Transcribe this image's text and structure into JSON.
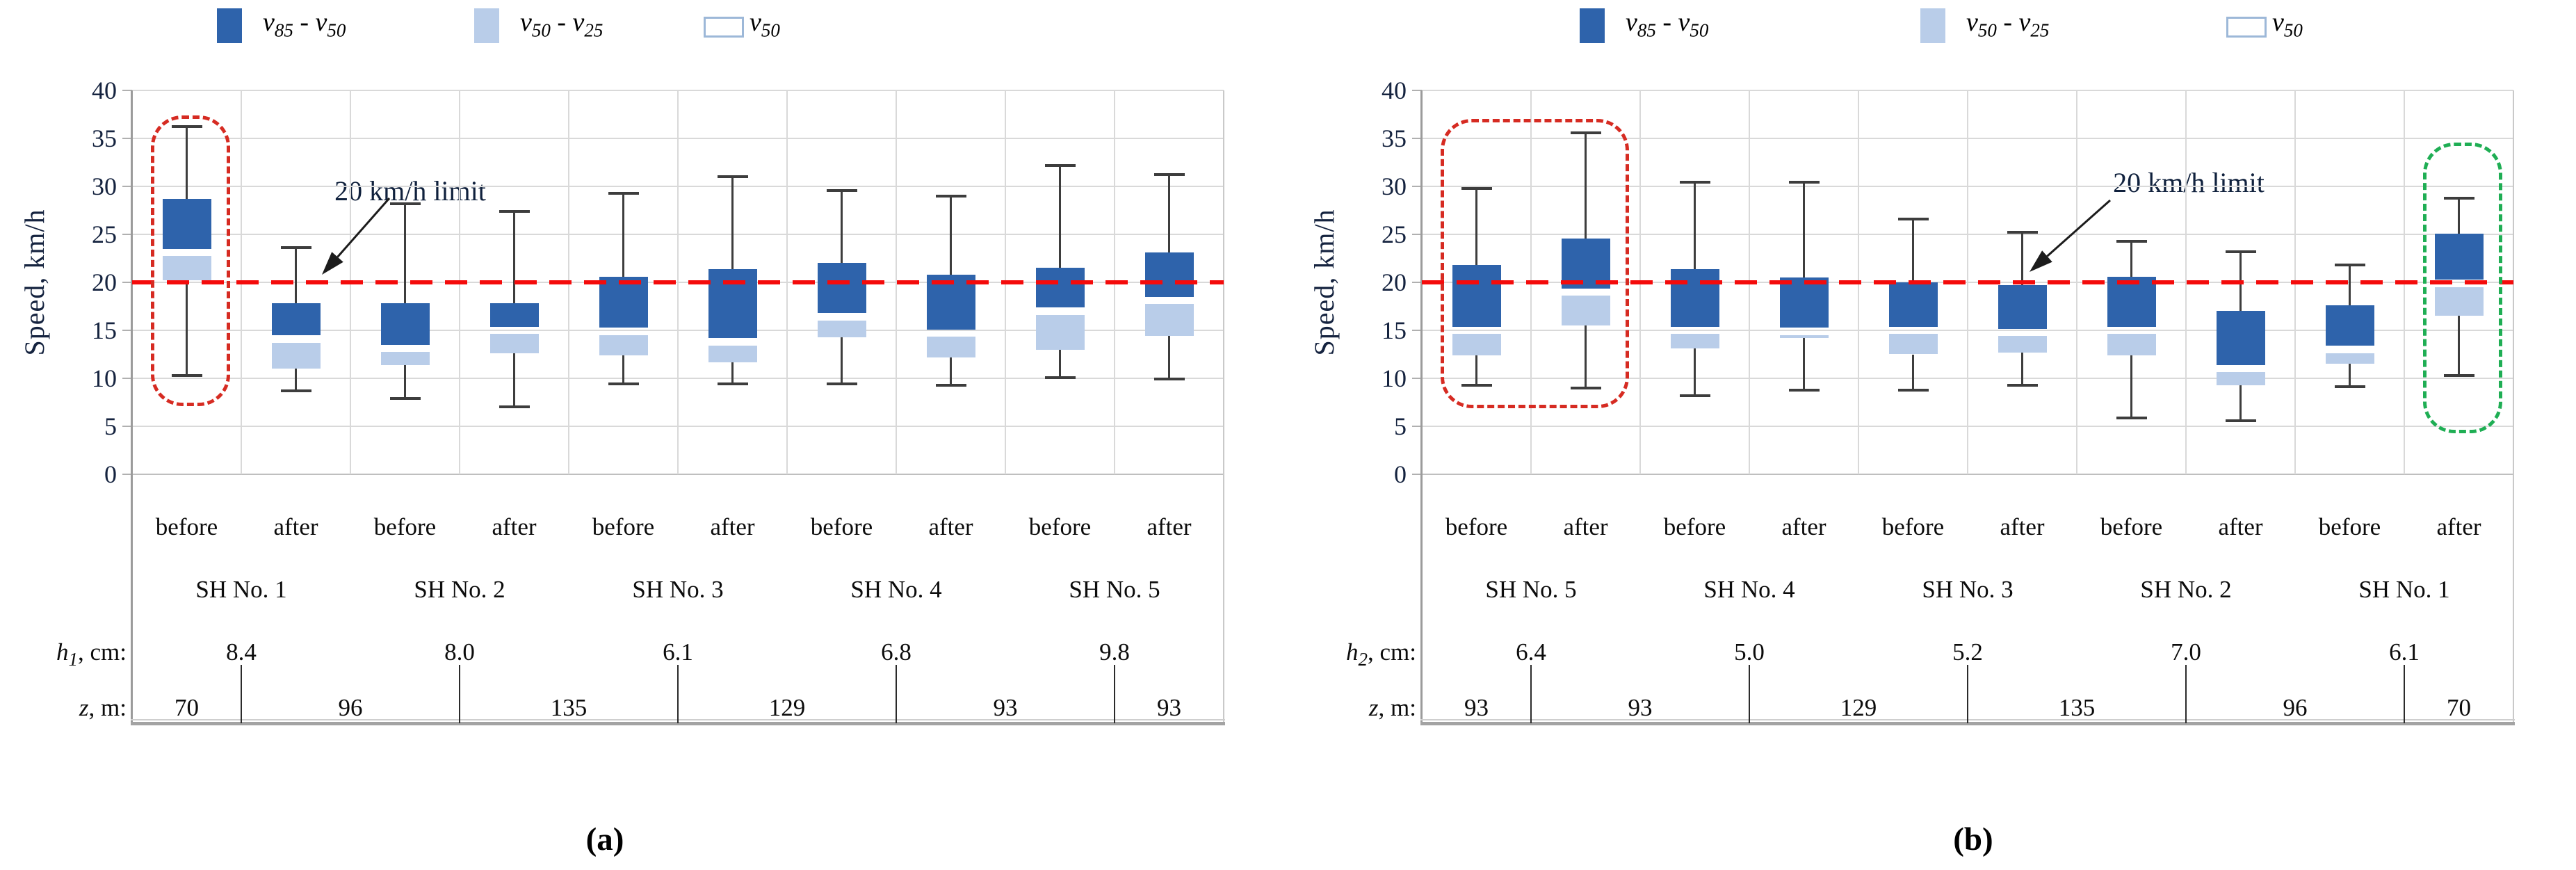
{
  "figure": {
    "captions": [
      "(a)",
      "(b)"
    ],
    "colors": {
      "box_dark": "#2e63ab",
      "box_light": "#b9cde9",
      "limit_red": "#f40b0b",
      "highlight_red": "#d62b22",
      "highlight_green": "#1fae54",
      "grid": "#d9d9d9",
      "axis": "#9b9b9b",
      "whisker": "#3d3d3d",
      "outline_swatch_border": "#9db8d8"
    }
  },
  "legend": {
    "items": [
      {
        "name": "v85-v50",
        "swatch": "dark",
        "v1": "85",
        "sep": " - ",
        "v2": "50",
        "display": "v85 - v50"
      },
      {
        "name": "v50-v25",
        "swatch": "light",
        "v1": "50",
        "sep": " - ",
        "v2": "25",
        "display": "v50 - v25"
      },
      {
        "name": "v50",
        "swatch": "outline",
        "v1": "50",
        "sep": "",
        "v2": "",
        "display": "v50"
      }
    ]
  },
  "chart_data": [
    {
      "id": "a",
      "type": "box",
      "caption": "(a)",
      "y_axis": {
        "title": "Speed, km/h",
        "min": 0,
        "max": 40,
        "step": 5,
        "tick_labels": [
          "40",
          "35",
          "30",
          "25",
          "20",
          "15",
          "10",
          "5",
          "0"
        ]
      },
      "limit_line": {
        "value": 20,
        "label": "20 km/h limit"
      },
      "groups": [
        {
          "label": "SH No. 1",
          "h": "8.4"
        },
        {
          "label": "SH No. 2",
          "h": "8.0"
        },
        {
          "label": "SH No. 3",
          "h": "6.1"
        },
        {
          "label": "SH No. 4",
          "h": "6.8"
        },
        {
          "label": "SH No. 5",
          "h": "9.8"
        }
      ],
      "h_row": {
        "var": "h",
        "sub": "1",
        "unit": ", cm:"
      },
      "z_row": {
        "var": "z",
        "sub": "",
        "unit": ", m:"
      },
      "z_values": [
        "70",
        "96",
        "135",
        "129",
        "93",
        "93"
      ],
      "boxes": [
        {
          "phase": "before",
          "group": "SH No. 1",
          "lo": 10.3,
          "p25": 20.2,
          "p50": 23.1,
          "p85": 28.7,
          "hi": 36.2
        },
        {
          "phase": "after",
          "group": "SH No. 1",
          "lo": 8.7,
          "p25": 11.0,
          "p50": 14.1,
          "p85": 17.8,
          "hi": 23.6
        },
        {
          "phase": "before",
          "group": "SH No. 2",
          "lo": 7.9,
          "p25": 11.4,
          "p50": 13.1,
          "p85": 17.8,
          "hi": 28.2
        },
        {
          "phase": "after",
          "group": "SH No. 2",
          "lo": 7.0,
          "p25": 12.6,
          "p50": 15.0,
          "p85": 17.8,
          "hi": 27.4
        },
        {
          "phase": "before",
          "group": "SH No. 3",
          "lo": 9.4,
          "p25": 12.4,
          "p50": 14.9,
          "p85": 20.6,
          "hi": 29.3
        },
        {
          "phase": "after",
          "group": "SH No. 3",
          "lo": 9.4,
          "p25": 11.7,
          "p50": 13.8,
          "p85": 21.4,
          "hi": 31.0
        },
        {
          "phase": "before",
          "group": "SH No. 4",
          "lo": 9.4,
          "p25": 14.3,
          "p50": 16.4,
          "p85": 22.0,
          "hi": 29.6
        },
        {
          "phase": "after",
          "group": "SH No. 4",
          "lo": 9.3,
          "p25": 12.2,
          "p50": 14.7,
          "p85": 20.8,
          "hi": 29.0
        },
        {
          "phase": "before",
          "group": "SH No. 5",
          "lo": 10.1,
          "p25": 13.0,
          "p50": 17.0,
          "p85": 21.5,
          "hi": 32.2
        },
        {
          "phase": "after",
          "group": "SH No. 5",
          "lo": 9.9,
          "p25": 14.4,
          "p50": 18.1,
          "p85": 23.1,
          "hi": 31.2
        }
      ],
      "highlights": [
        {
          "style": "red-dashed",
          "first_box": 0,
          "last_box": 0,
          "top_kmh": 37.4,
          "bottom_kmh": 7.8
        }
      ]
    },
    {
      "id": "b",
      "type": "box",
      "caption": "(b)",
      "y_axis": {
        "title": "Speed, km/h",
        "min": 0,
        "max": 40,
        "step": 5,
        "tick_labels": [
          "40",
          "35",
          "30",
          "25",
          "20",
          "15",
          "10",
          "5",
          "0"
        ]
      },
      "limit_line": {
        "value": 20,
        "label": "20 km/h limit"
      },
      "groups": [
        {
          "label": "SH No. 5",
          "h": "6.4"
        },
        {
          "label": "SH No. 4",
          "h": "5.0"
        },
        {
          "label": "SH No. 3",
          "h": "5.2"
        },
        {
          "label": "SH No. 2",
          "h": "7.0"
        },
        {
          "label": "SH No. 1",
          "h": "6.1"
        }
      ],
      "h_row": {
        "var": "h",
        "sub": "2",
        "unit": ", cm:"
      },
      "z_row": {
        "var": "z",
        "sub": "",
        "unit": ", m:"
      },
      "z_values": [
        "93",
        "93",
        "129",
        "135",
        "96",
        "70"
      ],
      "boxes": [
        {
          "phase": "before",
          "group": "SH No. 5",
          "lo": 9.3,
          "p25": 12.4,
          "p50": 15.0,
          "p85": 21.8,
          "hi": 29.8
        },
        {
          "phase": "after",
          "group": "SH No. 5",
          "lo": 9.0,
          "p25": 15.5,
          "p50": 19.0,
          "p85": 24.6,
          "hi": 35.6
        },
        {
          "phase": "before",
          "group": "SH No. 4",
          "lo": 8.2,
          "p25": 13.1,
          "p50": 15.0,
          "p85": 21.4,
          "hi": 30.4
        },
        {
          "phase": "after",
          "group": "SH No. 4",
          "lo": 8.8,
          "p25": 14.2,
          "p50": 14.9,
          "p85": 20.5,
          "hi": 30.4
        },
        {
          "phase": "before",
          "group": "SH No. 3",
          "lo": 8.8,
          "p25": 12.5,
          "p50": 15.0,
          "p85": 20.0,
          "hi": 26.6
        },
        {
          "phase": "after",
          "group": "SH No. 3",
          "lo": 9.3,
          "p25": 12.7,
          "p50": 14.8,
          "p85": 19.7,
          "hi": 25.2
        },
        {
          "phase": "before",
          "group": "SH No. 2",
          "lo": 5.9,
          "p25": 12.4,
          "p50": 15.0,
          "p85": 20.6,
          "hi": 24.3
        },
        {
          "phase": "after",
          "group": "SH No. 2",
          "lo": 5.6,
          "p25": 9.3,
          "p50": 11.0,
          "p85": 17.0,
          "hi": 23.2
        },
        {
          "phase": "before",
          "group": "SH No. 1",
          "lo": 9.1,
          "p25": 11.5,
          "p50": 13.0,
          "p85": 17.6,
          "hi": 21.8
        },
        {
          "phase": "after",
          "group": "SH No. 1",
          "lo": 10.3,
          "p25": 16.5,
          "p50": 19.9,
          "p85": 25.1,
          "hi": 28.8
        }
      ],
      "highlights": [
        {
          "style": "red-dashed",
          "first_box": 0,
          "last_box": 1,
          "top_kmh": 37.0,
          "bottom_kmh": 7.6
        },
        {
          "style": "green-dashed",
          "first_box": 9,
          "last_box": 9,
          "top_kmh": 34.6,
          "bottom_kmh": 5.0
        }
      ]
    }
  ]
}
